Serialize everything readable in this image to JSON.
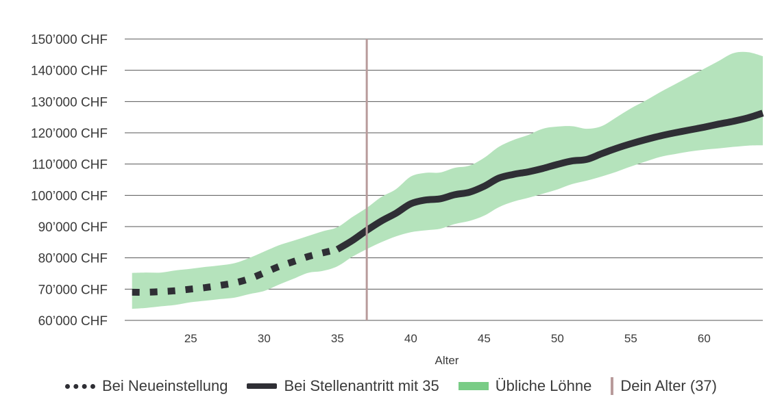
{
  "chart_data": {
    "type": "line",
    "title": "",
    "xlabel": "Alter",
    "ylabel": "",
    "xlim": [
      20.5,
      64
    ],
    "ylim": [
      60000,
      150000
    ],
    "x_ticks": [
      25,
      30,
      35,
      40,
      45,
      50,
      55,
      60
    ],
    "y_ticks": [
      60000,
      70000,
      80000,
      90000,
      100000,
      110000,
      120000,
      130000,
      140000,
      150000
    ],
    "y_tick_labels": [
      "60’000 CHF",
      "70’000 CHF",
      "80’000 CHF",
      "90’000 CHF",
      "100’000 CHF",
      "110’000 CHF",
      "120’000 CHF",
      "130’000 CHF",
      "140’000 CHF",
      "150’000 CHF"
    ],
    "x_tick_labels": [
      "25",
      "30",
      "35",
      "40",
      "45",
      "50",
      "55",
      "60"
    ],
    "grid": "horizontal",
    "legend_position": "bottom",
    "colors": {
      "line": "#2f2f35",
      "band": "#b5e3bc",
      "band_legend": "#79cc86",
      "marker": "#b89b9b",
      "grid": "#555555"
    },
    "series": [
      {
        "name": "Bei Neueinstellung",
        "style": "dotted",
        "x": [
          21,
          22,
          23,
          24,
          25,
          26,
          27,
          28,
          29,
          30,
          31,
          32,
          33,
          34,
          35
        ],
        "y": [
          69000,
          69000,
          69200,
          69500,
          70000,
          70500,
          71200,
          72000,
          73300,
          75200,
          77200,
          78800,
          80400,
          81600,
          82700
        ]
      },
      {
        "name": "Bei Stellenantritt mit 35",
        "style": "solid",
        "x": [
          35,
          36,
          37,
          38,
          39,
          40,
          41,
          42,
          43,
          44,
          45,
          46,
          47,
          48,
          49,
          50,
          51,
          52,
          53,
          54,
          55,
          56,
          57,
          58,
          59,
          60,
          61,
          62,
          63,
          64
        ],
        "y": [
          82700,
          85500,
          88800,
          91800,
          94300,
          97300,
          98500,
          98900,
          100200,
          101000,
          102900,
          105500,
          106700,
          107500,
          108600,
          109900,
          111000,
          111500,
          113300,
          115000,
          116500,
          117800,
          119000,
          120000,
          120900,
          121800,
          122800,
          123700,
          124800,
          126300
        ]
      },
      {
        "name": "Übliche Löhne",
        "style": "band",
        "x": [
          21,
          22,
          23,
          24,
          25,
          26,
          27,
          28,
          29,
          30,
          31,
          32,
          33,
          34,
          35,
          36,
          37,
          38,
          39,
          40,
          41,
          42,
          43,
          44,
          45,
          46,
          47,
          48,
          49,
          50,
          51,
          52,
          53,
          54,
          55,
          56,
          57,
          58,
          59,
          60,
          61,
          62,
          63,
          64
        ],
        "lower": [
          63700,
          64000,
          64500,
          65000,
          65800,
          66300,
          66800,
          67300,
          68400,
          69400,
          71400,
          73300,
          75200,
          75800,
          77300,
          80300,
          82800,
          85000,
          86900,
          88200,
          88800,
          89300,
          90800,
          91800,
          93500,
          96200,
          98000,
          99200,
          100500,
          101900,
          103600,
          104700,
          106000,
          107500,
          109200,
          110800,
          112300,
          113200,
          114000,
          114600,
          115000,
          115500,
          115900,
          116000
        ],
        "upper": [
          75200,
          75300,
          75300,
          76000,
          76500,
          77100,
          77600,
          78300,
          80000,
          82000,
          84000,
          85500,
          87000,
          88500,
          89800,
          93000,
          96000,
          99500,
          102000,
          106000,
          107200,
          107300,
          108800,
          109500,
          112000,
          115500,
          117700,
          119300,
          121300,
          122000,
          122100,
          121300,
          122100,
          124900,
          127800,
          130300,
          133000,
          135500,
          138000,
          140500,
          143000,
          145500,
          145800,
          144500
        ]
      },
      {
        "name": "Dein Alter (37)",
        "style": "vertical-line",
        "x": 37
      }
    ]
  }
}
